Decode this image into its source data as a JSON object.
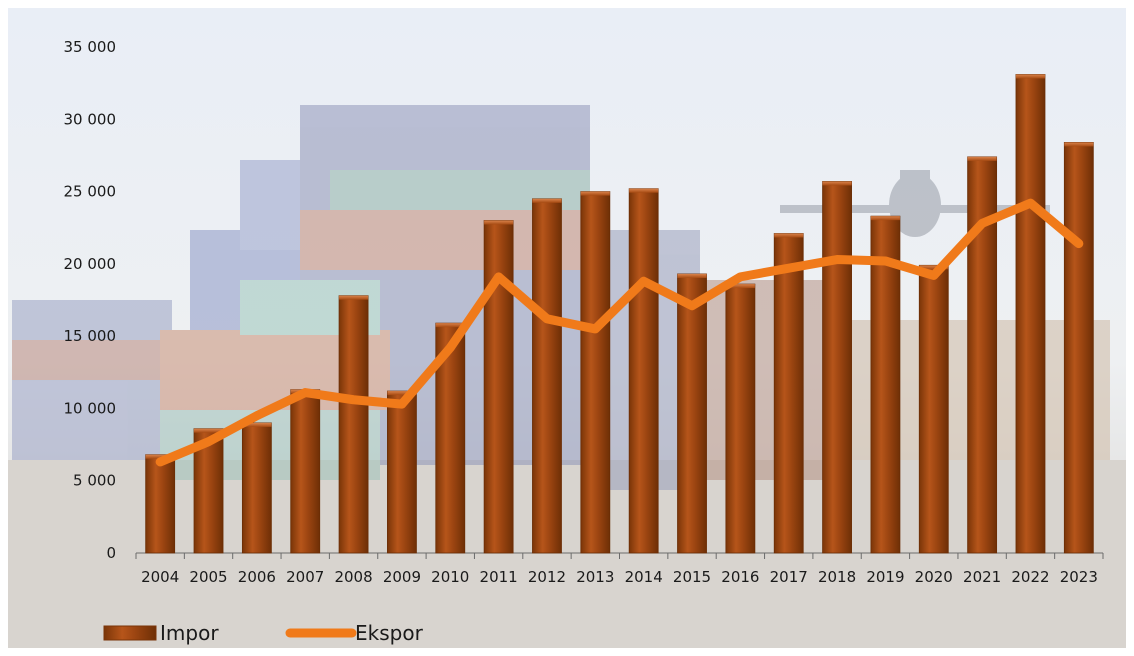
{
  "chart_data": {
    "type": "bar",
    "categories": [
      "2004",
      "2005",
      "2006",
      "2007",
      "2008",
      "2009",
      "2010",
      "2011",
      "2012",
      "2013",
      "2014",
      "2015",
      "2016",
      "2017",
      "2018",
      "2019",
      "2020",
      "2021",
      "2022",
      "2023"
    ],
    "series": [
      {
        "name": "Impor",
        "type": "bar",
        "color": "#9a4a12",
        "values": [
          6800,
          8600,
          9000,
          11300,
          17800,
          11200,
          15900,
          23000,
          24500,
          25000,
          25200,
          19300,
          18600,
          22100,
          25700,
          23300,
          19900,
          27400,
          33100,
          28400
        ]
      },
      {
        "name": "Ekspor",
        "type": "line",
        "color": "#f07a1a",
        "values": [
          6300,
          7700,
          9500,
          11100,
          10600,
          10300,
          14200,
          19100,
          16200,
          15500,
          18800,
          17100,
          19100,
          19700,
          20300,
          20200,
          19200,
          22800,
          24200,
          21400
        ]
      }
    ],
    "yticks": [
      0,
      5000,
      10000,
      15000,
      20000,
      25000,
      30000,
      35000
    ],
    "ytick_labels": [
      "0",
      "5 000",
      "10 000",
      "15 000",
      "20 000",
      "25 000",
      "30 000",
      "35 000"
    ],
    "ylim": [
      0,
      35000
    ],
    "grid": false,
    "legend_position": "bottom-left",
    "title": "",
    "xlabel": "",
    "ylabel": ""
  }
}
